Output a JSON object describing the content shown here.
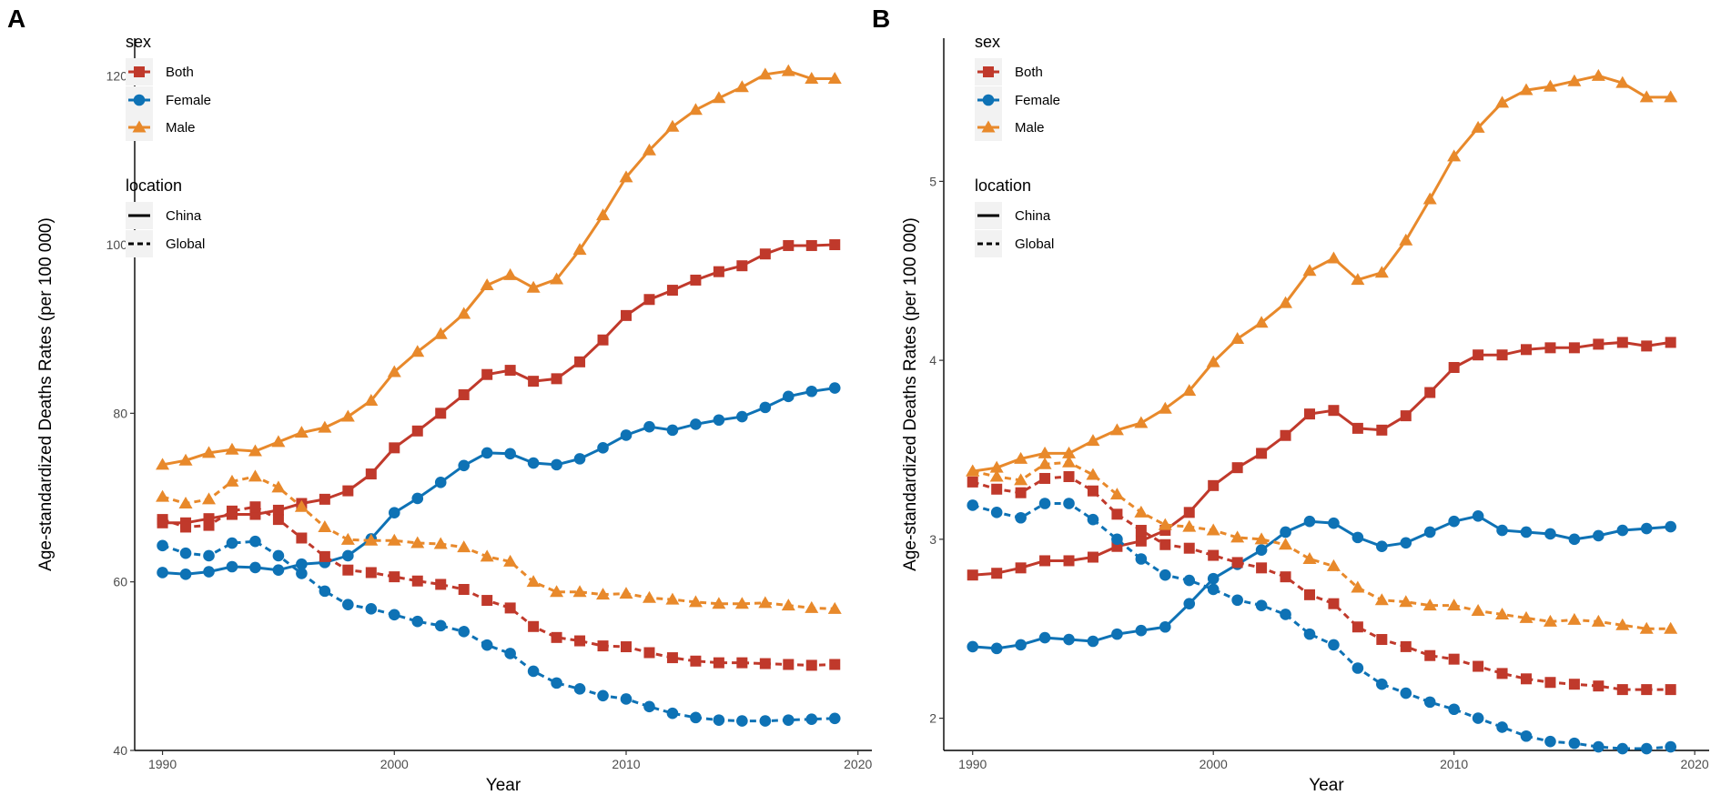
{
  "chart_data": [
    {
      "type": "line",
      "panel_label": "A",
      "xlabel": "Year",
      "ylabel": "Age-standardized Deaths Rates (per 100 000)",
      "xlim": [
        1988.8,
        2020.6
      ],
      "ylim": [
        40,
        124.5
      ],
      "xticks": [
        1990,
        2000,
        2010,
        2020
      ],
      "yticks": [
        40,
        60,
        80,
        100,
        120
      ],
      "x": [
        1990,
        1991,
        1992,
        1993,
        1994,
        1995,
        1996,
        1997,
        1998,
        1999,
        2000,
        2001,
        2002,
        2003,
        2004,
        2005,
        2006,
        2007,
        2008,
        2009,
        2010,
        2011,
        2012,
        2013,
        2014,
        2015,
        2016,
        2017,
        2018,
        2019
      ],
      "legend_sex_title": "sex",
      "legend_location_title": "location",
      "series": [
        {
          "name": "Both",
          "sex": "Both",
          "location": "China",
          "values": [
            67.0,
            67.0,
            67.5,
            68.0,
            68.0,
            68.5,
            69.3,
            69.8,
            70.8,
            72.8,
            75.9,
            77.9,
            80.0,
            82.2,
            84.6,
            85.1,
            83.8,
            84.1,
            86.1,
            88.7,
            91.6,
            93.5,
            94.6,
            95.8,
            96.8,
            97.5,
            98.9,
            99.9,
            99.9,
            100.0
          ]
        },
        {
          "name": "Both",
          "sex": "Both",
          "location": "Global",
          "values": [
            67.4,
            66.5,
            66.7,
            68.4,
            68.9,
            67.4,
            65.2,
            63.0,
            61.4,
            61.1,
            60.6,
            60.1,
            59.7,
            59.1,
            57.8,
            56.9,
            54.7,
            53.4,
            53.0,
            52.4,
            52.3,
            51.6,
            51.0,
            50.6,
            50.4,
            50.4,
            50.3,
            50.2,
            50.1,
            50.2
          ]
        },
        {
          "name": "Female",
          "sex": "Female",
          "location": "China",
          "values": [
            61.1,
            60.9,
            61.2,
            61.8,
            61.7,
            61.4,
            62.1,
            62.3,
            63.1,
            65.1,
            68.2,
            69.9,
            71.8,
            73.8,
            75.3,
            75.2,
            74.1,
            73.9,
            74.6,
            75.9,
            77.4,
            78.4,
            78.0,
            78.7,
            79.2,
            79.6,
            80.7,
            82.0,
            82.6,
            83.0
          ]
        },
        {
          "name": "Female",
          "sex": "Female",
          "location": "Global",
          "values": [
            64.3,
            63.4,
            63.1,
            64.6,
            64.8,
            63.1,
            61.0,
            58.9,
            57.3,
            56.8,
            56.1,
            55.3,
            54.8,
            54.1,
            52.5,
            51.5,
            49.4,
            48.0,
            47.3,
            46.5,
            46.1,
            45.2,
            44.4,
            43.9,
            43.6,
            43.5,
            43.5,
            43.6,
            43.7,
            43.8
          ]
        },
        {
          "name": "Male",
          "sex": "Male",
          "location": "China",
          "values": [
            73.9,
            74.4,
            75.3,
            75.7,
            75.5,
            76.6,
            77.7,
            78.3,
            79.6,
            81.5,
            84.9,
            87.3,
            89.4,
            91.8,
            95.2,
            96.4,
            94.9,
            95.9,
            99.4,
            103.5,
            108.0,
            111.2,
            114.0,
            116.0,
            117.4,
            118.7,
            120.2,
            120.6,
            119.7,
            119.7
          ]
        },
        {
          "name": "Male",
          "sex": "Male",
          "location": "Global",
          "values": [
            70.1,
            69.3,
            69.8,
            71.9,
            72.5,
            71.2,
            68.9,
            66.5,
            65.0,
            64.9,
            64.9,
            64.6,
            64.5,
            64.1,
            63.0,
            62.4,
            60.0,
            58.8,
            58.8,
            58.5,
            58.6,
            58.1,
            57.9,
            57.6,
            57.4,
            57.4,
            57.5,
            57.2,
            56.9,
            56.8
          ]
        }
      ]
    },
    {
      "type": "line",
      "panel_label": "B",
      "xlabel": "Year",
      "ylabel": "Age-standardized Deaths Rates (per 100 000)",
      "xlim": [
        1988.8,
        2020.6
      ],
      "ylim": [
        1.82,
        5.8
      ],
      "xticks": [
        1990,
        2000,
        2010,
        2020
      ],
      "yticks": [
        2,
        3,
        4,
        5
      ],
      "x": [
        1990,
        1991,
        1992,
        1993,
        1994,
        1995,
        1996,
        1997,
        1998,
        1999,
        2000,
        2001,
        2002,
        2003,
        2004,
        2005,
        2006,
        2007,
        2008,
        2009,
        2010,
        2011,
        2012,
        2013,
        2014,
        2015,
        2016,
        2017,
        2018,
        2019
      ],
      "legend_sex_title": "sex",
      "legend_location_title": "location",
      "series": [
        {
          "name": "Both",
          "sex": "Both",
          "location": "China",
          "values": [
            2.8,
            2.81,
            2.84,
            2.88,
            2.88,
            2.9,
            2.96,
            2.99,
            3.05,
            3.15,
            3.3,
            3.4,
            3.48,
            3.58,
            3.7,
            3.72,
            3.62,
            3.61,
            3.69,
            3.82,
            3.96,
            4.03,
            4.03,
            4.06,
            4.07,
            4.07,
            4.09,
            4.1,
            4.08,
            4.1
          ]
        },
        {
          "name": "Both",
          "sex": "Both",
          "location": "Global",
          "values": [
            3.32,
            3.28,
            3.26,
            3.34,
            3.35,
            3.27,
            3.14,
            3.05,
            2.97,
            2.95,
            2.91,
            2.87,
            2.84,
            2.79,
            2.69,
            2.64,
            2.51,
            2.44,
            2.4,
            2.35,
            2.33,
            2.29,
            2.25,
            2.22,
            2.2,
            2.19,
            2.18,
            2.16,
            2.16,
            2.16
          ]
        },
        {
          "name": "Female",
          "sex": "Female",
          "location": "China",
          "values": [
            2.4,
            2.39,
            2.41,
            2.45,
            2.44,
            2.43,
            2.47,
            2.49,
            2.51,
            2.64,
            2.78,
            2.86,
            2.94,
            3.04,
            3.1,
            3.09,
            3.01,
            2.96,
            2.98,
            3.04,
            3.1,
            3.13,
            3.05,
            3.04,
            3.03,
            3.0,
            3.02,
            3.05,
            3.06,
            3.07
          ]
        },
        {
          "name": "Female",
          "sex": "Female",
          "location": "Global",
          "values": [
            3.19,
            3.15,
            3.12,
            3.2,
            3.2,
            3.11,
            3.0,
            2.89,
            2.8,
            2.77,
            2.72,
            2.66,
            2.63,
            2.58,
            2.47,
            2.41,
            2.28,
            2.19,
            2.14,
            2.09,
            2.05,
            2.0,
            1.95,
            1.9,
            1.87,
            1.86,
            1.84,
            1.83,
            1.83,
            1.84
          ]
        },
        {
          "name": "Male",
          "sex": "Male",
          "location": "China",
          "values": [
            3.38,
            3.4,
            3.45,
            3.48,
            3.48,
            3.55,
            3.61,
            3.65,
            3.73,
            3.83,
            3.99,
            4.12,
            4.21,
            4.32,
            4.5,
            4.57,
            4.45,
            4.49,
            4.67,
            4.9,
            5.14,
            5.3,
            5.44,
            5.51,
            5.53,
            5.56,
            5.59,
            5.55,
            5.47,
            5.47
          ]
        },
        {
          "name": "Male",
          "sex": "Male",
          "location": "Global",
          "values": [
            3.38,
            3.35,
            3.33,
            3.42,
            3.43,
            3.36,
            3.25,
            3.15,
            3.08,
            3.07,
            3.05,
            3.01,
            3.0,
            2.97,
            2.89,
            2.85,
            2.73,
            2.66,
            2.65,
            2.63,
            2.63,
            2.6,
            2.58,
            2.56,
            2.54,
            2.55,
            2.54,
            2.52,
            2.5,
            2.5
          ]
        }
      ]
    }
  ],
  "colors": {
    "Both": "#c0392b",
    "Female": "#0e72b5",
    "Male": "#e8892b"
  },
  "markers": {
    "Both": "square",
    "Female": "circle",
    "Male": "triangle"
  },
  "legend": {
    "sex_title": "sex",
    "sex_items": [
      "Both",
      "Female",
      "Male"
    ],
    "location_title": "location",
    "location_items": [
      {
        "label": "China",
        "linestyle": "solid"
      },
      {
        "label": "Global",
        "linestyle": "dashed"
      }
    ]
  }
}
